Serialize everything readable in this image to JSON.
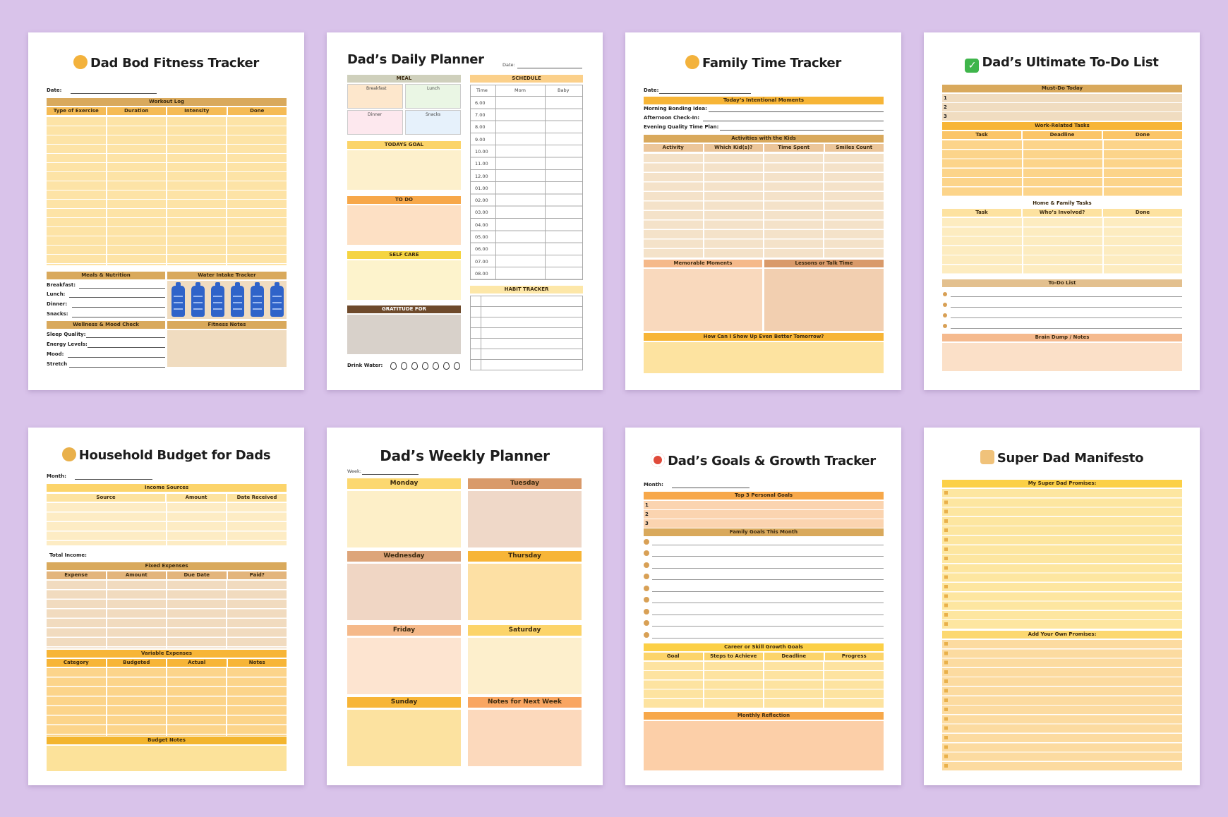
{
  "fitness": {
    "title": "Dad Bod Fitness Tracker",
    "date_label": "Date:",
    "workout_log": "Workout Log",
    "cols": [
      "Type of Exercise",
      "Duration",
      "Intensity",
      "Done"
    ],
    "meals": "Meals & Nutrition",
    "water": "Water Intake Tracker",
    "meal_rows": [
      "Breakfast:",
      "Lunch:",
      "Dinner:",
      "Snacks:"
    ],
    "wellness": "Wellness & Mood Check",
    "fitness_notes": "Fitness Notes",
    "wellness_rows": [
      "Sleep Quality:",
      "Energy Levels:",
      "Mood:",
      "Stretch"
    ]
  },
  "daily": {
    "title": "Dad’s Daily Planner",
    "date_label": "Date:",
    "meal": "MEAL",
    "meal_cells": [
      "Breakfast",
      "Lunch",
      "Dinner",
      "Snacks"
    ],
    "schedule": "SCHEDULE",
    "sched_cols": [
      "Time",
      "Mom",
      "Baby"
    ],
    "times": [
      "6.00",
      "7.00",
      "8.00",
      "9.00",
      "10.00",
      "11.00",
      "12.00",
      "01.00",
      "02.00",
      "03.00",
      "04.00",
      "05.00",
      "06.00",
      "07.00",
      "08.00"
    ],
    "todays_goal": "TODAYS GOAL",
    "todo": "TO DO",
    "selfcare": "SELF CARE",
    "gratitude": "GRATITUDE FOR",
    "habit": "HABIT TRACKER",
    "drink": "Drink Water:"
  },
  "family": {
    "title": "Family Time Tracker",
    "date_label": "Date:",
    "intentional": "Today’s Intentional Moments",
    "rows": [
      "Morning Bonding Idea:",
      "Afternoon Check-In:",
      "Evening Quality Time Plan:"
    ],
    "activities": "Activities with the Kids",
    "cols": [
      "Activity",
      "Which Kid(s)?",
      "Time Spent",
      "Smiles Count"
    ],
    "memorable": "Memorable Moments",
    "lessons": "Lessons or Talk Time",
    "showup": "How Can I Show Up Even Better Tomorrow?"
  },
  "todo": {
    "title": "Dad’s Ultimate To-Do List",
    "must": "Must-Do Today",
    "nums": [
      "1",
      "2",
      "3"
    ],
    "work": "Work-Related Tasks",
    "work_cols": [
      "Task",
      "Deadline",
      "Done"
    ],
    "home": "Home & Family Tasks",
    "home_cols": [
      "Task",
      "Who’s Involved?",
      "Done"
    ],
    "list": "To-Do List",
    "brain": "Brain Dump / Notes"
  },
  "budget": {
    "title": "Household Budget for Dads",
    "month_label": "Month:",
    "income": "Income Sources",
    "income_cols": [
      "Source",
      "Amount",
      "Date Received"
    ],
    "total": "Total Income:",
    "fixed": "Fixed Expenses",
    "fixed_cols": [
      "Expense",
      "Amount",
      "Due Date",
      "Paid?"
    ],
    "variable": "Variable Expenses",
    "var_cols": [
      "Category",
      "Budgeted",
      "Actual",
      "Notes"
    ],
    "notes": "Budget Notes"
  },
  "weekly": {
    "title": "Dad’s Weekly Planner",
    "week_label": "Week:",
    "days": [
      "Monday",
      "Tuesday",
      "Wednesday",
      "Thursday",
      "Friday",
      "Saturday",
      "Sunday",
      "Notes for Next Week"
    ]
  },
  "goals": {
    "title": "Dad’s Goals & Growth Tracker",
    "month_label": "Month:",
    "top3": "Top 3 Personal Goals",
    "nums": [
      "1",
      "2",
      "3"
    ],
    "family": "Family Goals This Month",
    "career": "Career or Skill Growth Goals",
    "career_cols": [
      "Goal",
      "Steps to Achieve",
      "Deadline",
      "Progress"
    ],
    "reflection": "Monthly Reflection"
  },
  "manifesto": {
    "title": "Super Dad Manifesto",
    "promises": "My Super Dad Promises:",
    "own": "Add Your Own Promises:"
  },
  "colors": {
    "background": "#d9c3ea",
    "tan": "#d9a95c",
    "light_yellow": "#fde7a8",
    "orange": "#f7a84a",
    "peach": "#fbd4b0"
  }
}
